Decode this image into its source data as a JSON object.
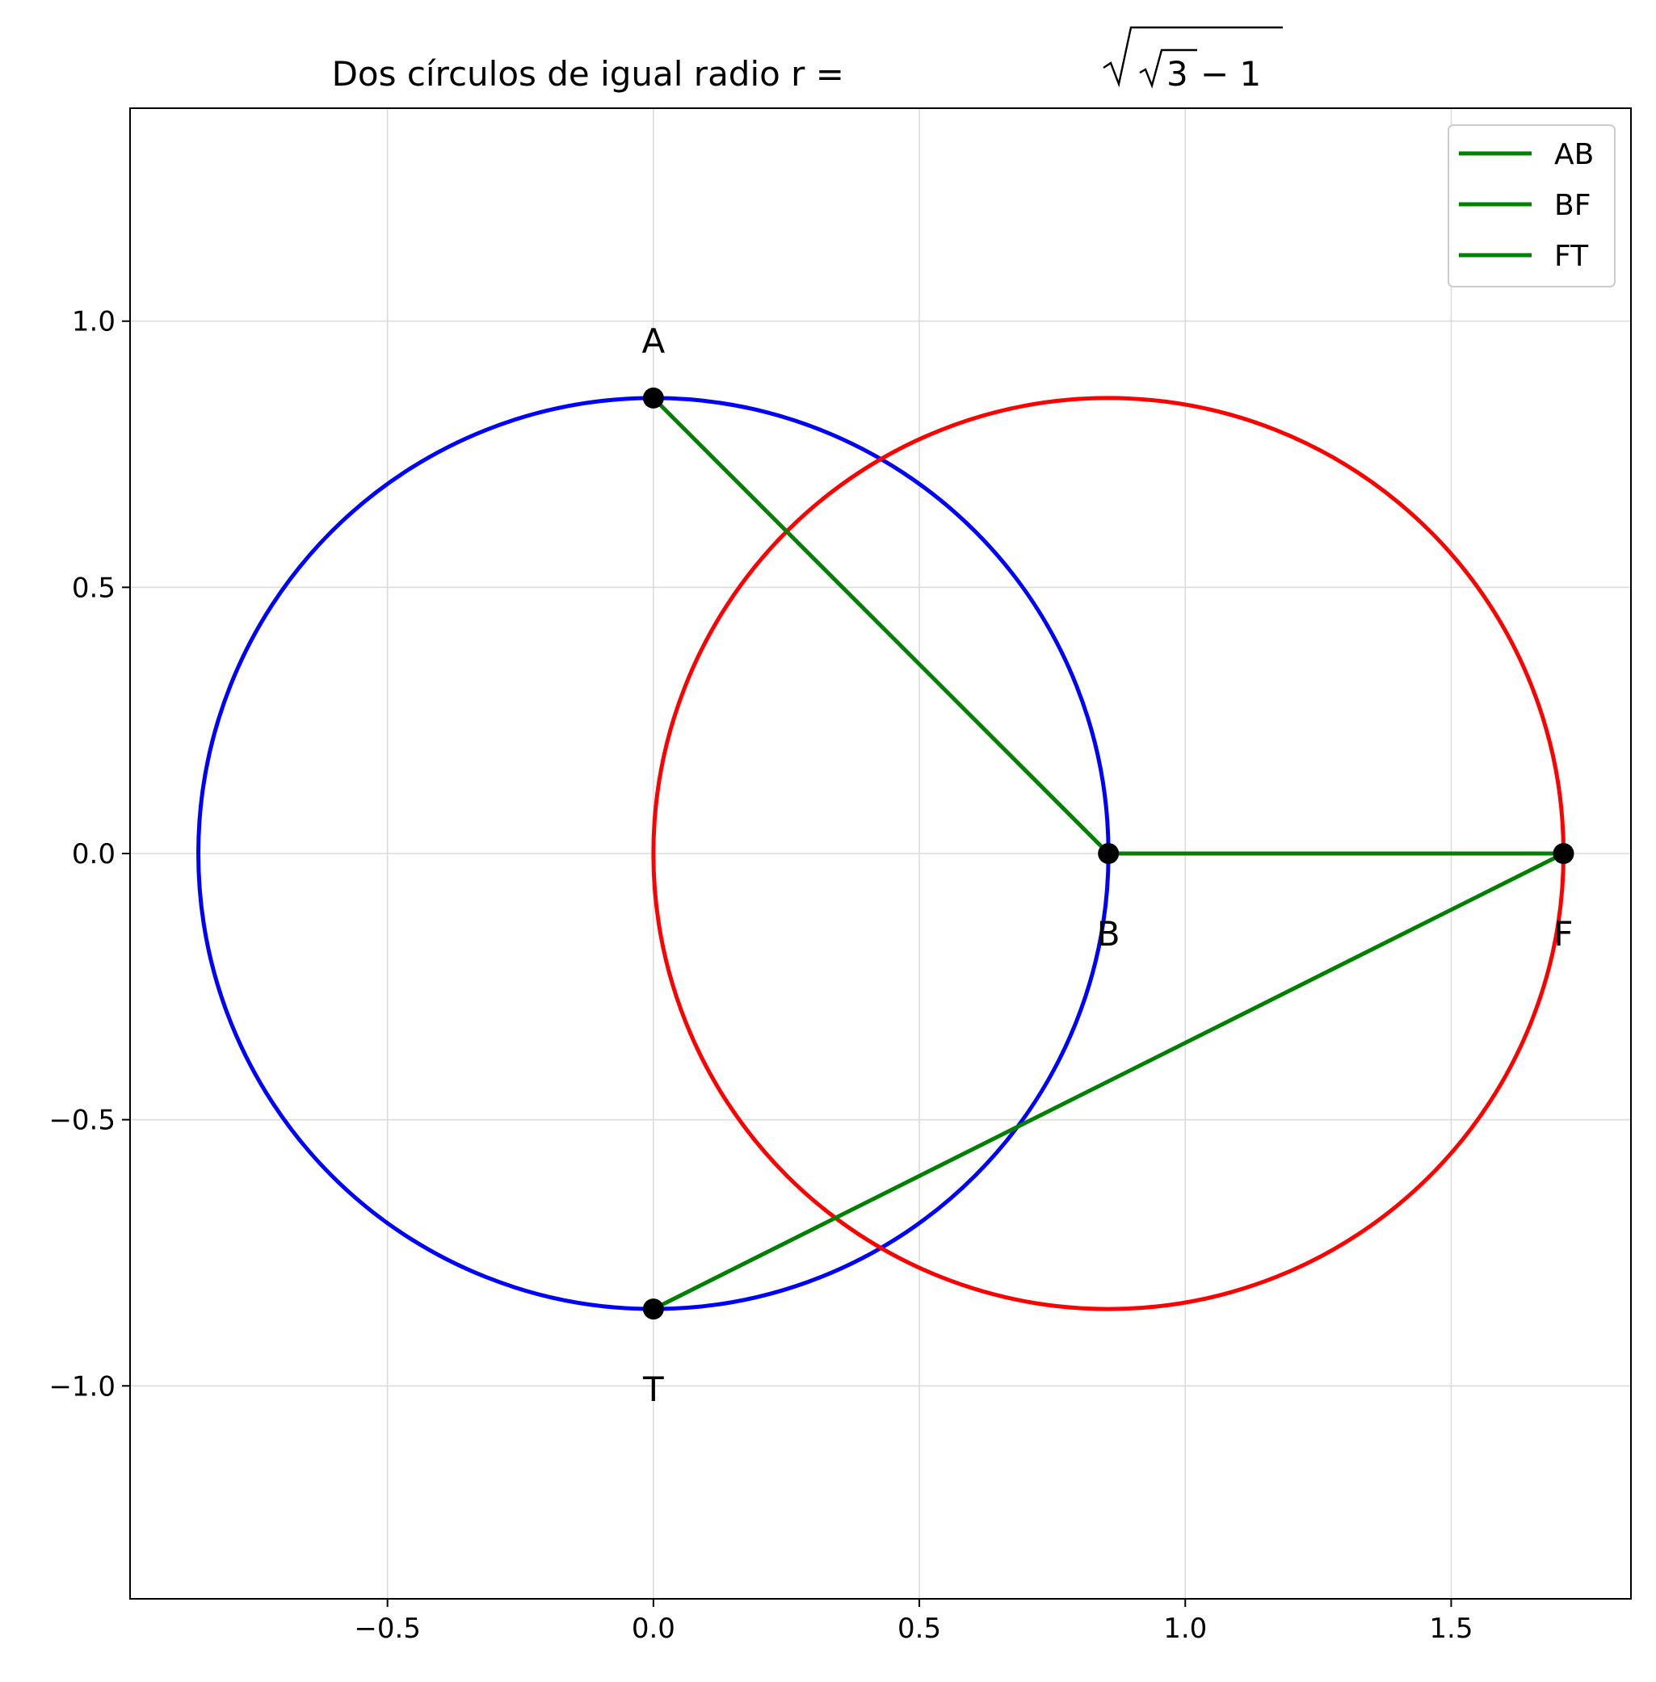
{
  "chart_data": {
    "type": "line",
    "title_prefix": "Dos círculos de igual radio r = ",
    "title_math_inner": "3",
    "title_math_suffix": " − 1",
    "xlabel": "",
    "ylabel": "",
    "xlim": [
      -0.984,
      1.838
    ],
    "ylim": [
      -1.4,
      1.4
    ],
    "x_ticks": [
      -0.5,
      0.0,
      0.5,
      1.0,
      1.5
    ],
    "x_tick_labels": [
      "−0.5",
      "0.0",
      "0.5",
      "1.0",
      "1.5"
    ],
    "y_ticks": [
      -1.0,
      -0.5,
      0.0,
      0.5,
      1.0
    ],
    "y_tick_labels": [
      "−1.0",
      "−0.5",
      "0.0",
      "0.5",
      "1.0"
    ],
    "grid": true,
    "legend_position": "top-right",
    "circles": [
      {
        "center": [
          0,
          0
        ],
        "radius": 0.8556,
        "color": "#0000ff"
      },
      {
        "center": [
          0.8556,
          0
        ],
        "radius": 0.8556,
        "color": "#ff0000"
      }
    ],
    "series": [
      {
        "name": "AB",
        "color": "#008000",
        "points": [
          [
            0,
            0.8556
          ],
          [
            0.8556,
            0
          ]
        ]
      },
      {
        "name": "BF",
        "color": "#008000",
        "points": [
          [
            0.8556,
            0
          ],
          [
            1.7112,
            0
          ]
        ]
      },
      {
        "name": "FT",
        "color": "#008000",
        "points": [
          [
            1.7112,
            0
          ],
          [
            0,
            -0.8556
          ]
        ]
      }
    ],
    "points": [
      {
        "label": "A",
        "x": 0,
        "y": 0.8556,
        "label_pos": "above"
      },
      {
        "label": "B",
        "x": 0.8556,
        "y": 0,
        "label_pos": "below"
      },
      {
        "label": "F",
        "x": 1.7112,
        "y": 0,
        "label_pos": "below"
      },
      {
        "label": "T",
        "x": 0,
        "y": -0.8556,
        "label_pos": "below"
      }
    ]
  }
}
